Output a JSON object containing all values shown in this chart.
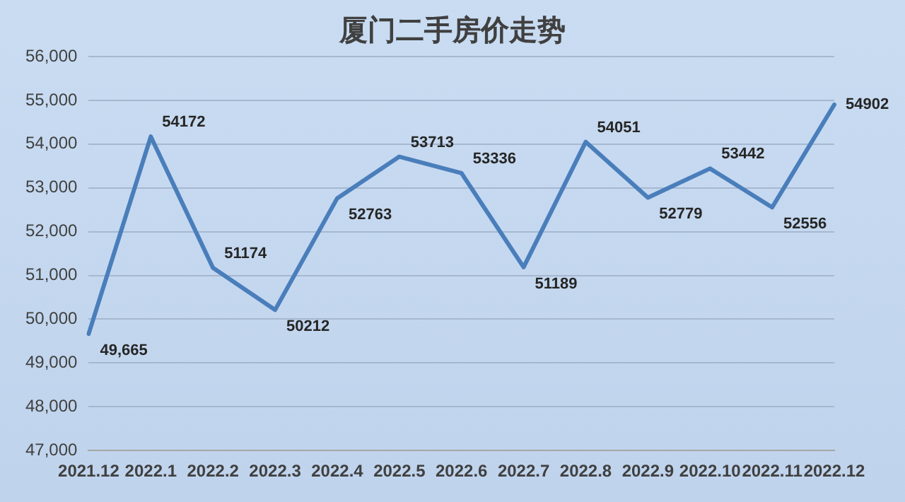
{
  "chart_data": {
    "type": "line",
    "title": "厦门二手房价走势",
    "categories": [
      "2021.12",
      "2022.1",
      "2022.2",
      "2022.3",
      "2022.4",
      "2022.5",
      "2022.6",
      "2022.7",
      "2022.8",
      "2022.9",
      "2022.10",
      "2022.11",
      "2022.12"
    ],
    "series": [
      {
        "color": "#4a7ebb",
        "values": [
          49665,
          54172,
          51174,
          50212,
          52763,
          53713,
          53336,
          51189,
          54051,
          52779,
          53442,
          52556,
          54902
        ],
        "value_labels": [
          "49,665",
          "54172",
          "51174",
          "50212",
          "52763",
          "53713",
          "53336",
          "51189",
          "54051",
          "52779",
          "53442",
          "52556",
          "54902"
        ]
      }
    ],
    "ylim": [
      47000,
      56000
    ],
    "yticks": [
      {
        "value": 47000,
        "label": "47,000"
      },
      {
        "value": 48000,
        "label": "48,000"
      },
      {
        "value": 49000,
        "label": "49,000"
      },
      {
        "value": 50000,
        "label": "50,000"
      },
      {
        "value": 51000,
        "label": "51,000"
      },
      {
        "value": 52000,
        "label": "52,000"
      },
      {
        "value": 53000,
        "label": "53,000"
      },
      {
        "value": 54000,
        "label": "54,000"
      },
      {
        "value": 55000,
        "label": "55,000"
      },
      {
        "value": 56000,
        "label": "56,000"
      }
    ],
    "grid": "y",
    "marker": "none",
    "line_style": "solid"
  }
}
